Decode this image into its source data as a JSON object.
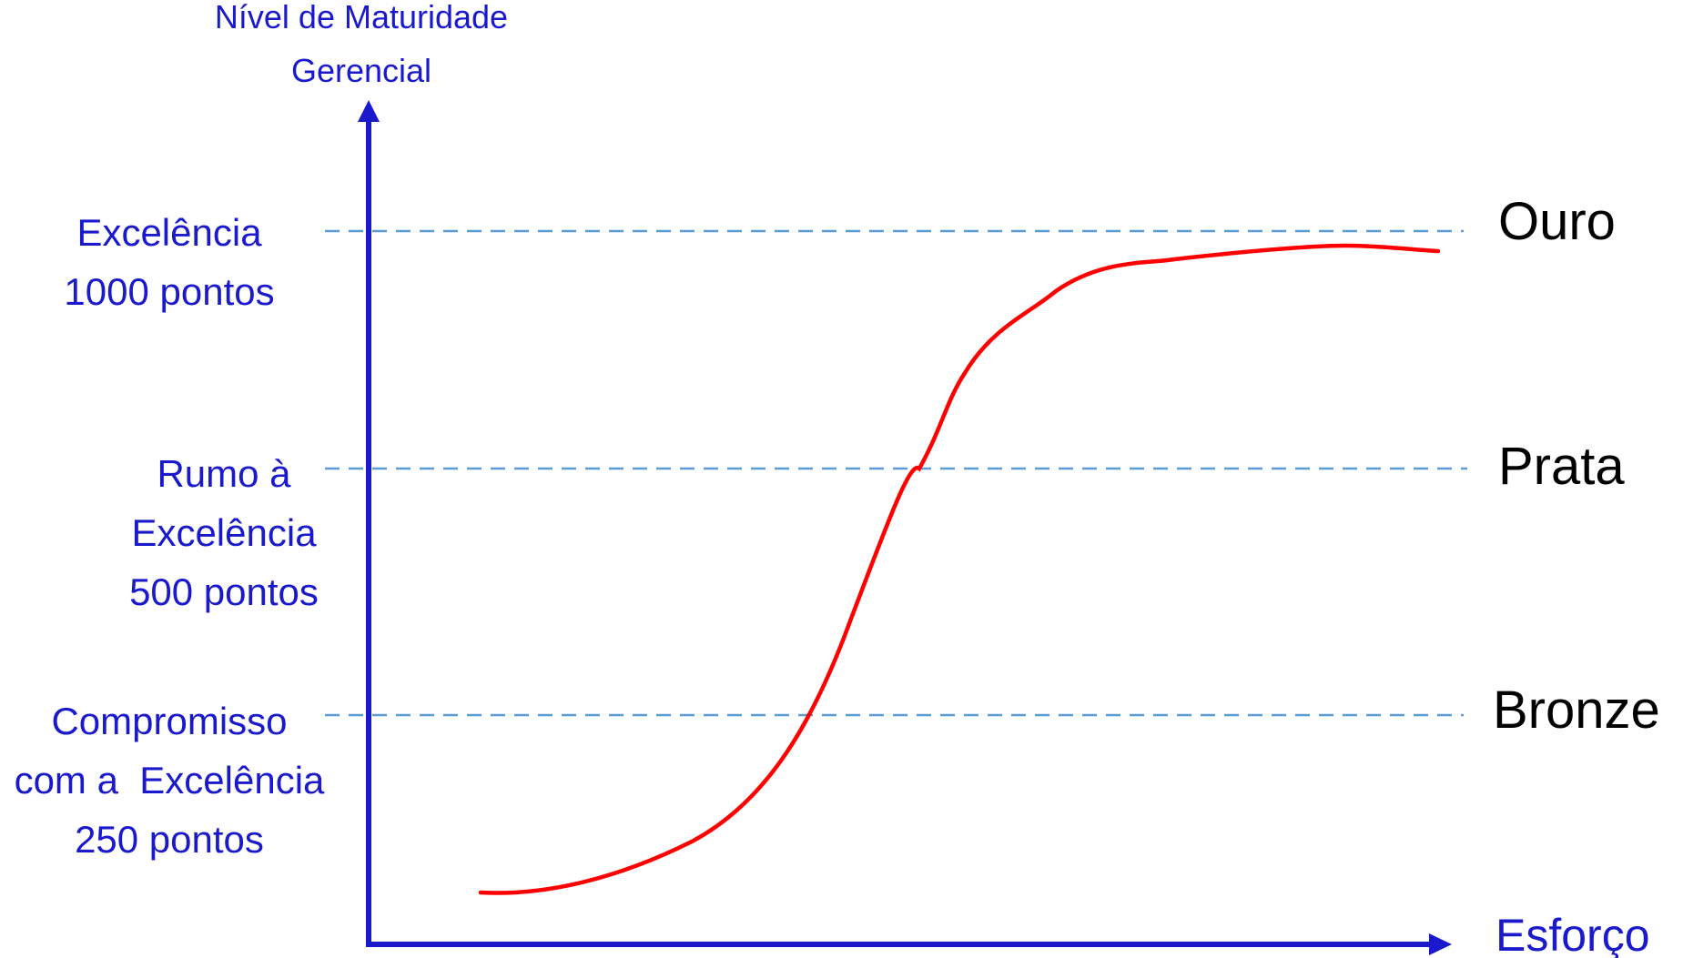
{
  "y_axis_title": [
    "Nível de Maturidade",
    "Gerencial"
  ],
  "x_axis_title": "Esforço",
  "levels": [
    {
      "id": "excelencia",
      "left_label_lines": [
        "Excelência",
        "1000 pontos"
      ],
      "right_label": "Ouro"
    },
    {
      "id": "rumo",
      "left_label_lines": [
        "Rumo à",
        "Excelência",
        "500 pontos"
      ],
      "right_label": "Prata"
    },
    {
      "id": "compromisso",
      "left_label_lines": [
        "Compromisso",
        "com a  Excelência",
        "250 pontos"
      ],
      "right_label": "Bronze"
    }
  ],
  "colors": {
    "axis": "#1a1acc",
    "axis_text": "#1a1acc",
    "level_line": "#5b9bd5",
    "curve": "#ff0000",
    "medal_text": "#000000"
  },
  "curve_shape": "s-curve"
}
